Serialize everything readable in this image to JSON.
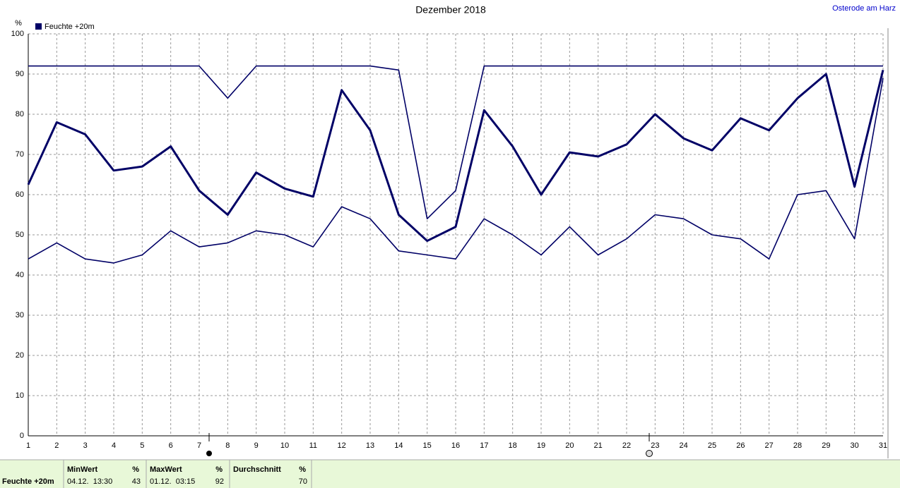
{
  "chart_data": {
    "type": "line",
    "title": "Dezember 2018",
    "y_label": "%",
    "x": [
      1,
      2,
      3,
      4,
      5,
      6,
      7,
      8,
      9,
      10,
      11,
      12,
      13,
      14,
      15,
      16,
      17,
      18,
      19,
      20,
      21,
      22,
      23,
      24,
      25,
      26,
      27,
      28,
      29,
      30,
      31
    ],
    "xlim": [
      1,
      31
    ],
    "xticks": [
      1,
      2,
      3,
      4,
      5,
      6,
      7,
      8,
      9,
      10,
      11,
      12,
      13,
      14,
      15,
      16,
      17,
      18,
      19,
      20,
      21,
      22,
      23,
      24,
      25,
      26,
      27,
      28,
      29,
      30,
      31
    ],
    "ylim": [
      0,
      100
    ],
    "yticks": [
      0,
      10,
      20,
      30,
      40,
      50,
      60,
      70,
      80,
      90,
      100
    ],
    "grid": true,
    "series": [
      {
        "name": "Feuchte +20m",
        "color": "#000066",
        "values": [
          62.5,
          78,
          75,
          66,
          67,
          72,
          61,
          55,
          65.5,
          61.5,
          59.5,
          86,
          76,
          55,
          48.5,
          52,
          81,
          72,
          60,
          70.5,
          69.5,
          72.5,
          80,
          74,
          71,
          79,
          76,
          84,
          90,
          62,
          91
        ]
      },
      {
        "color": "#000066",
        "values": [
          92,
          92,
          92,
          92,
          92,
          92,
          92,
          84,
          92,
          92,
          92,
          92,
          92,
          91,
          54,
          61,
          92,
          92,
          92,
          92,
          92,
          92,
          92,
          92,
          92,
          92,
          92,
          92,
          92,
          92,
          92
        ]
      },
      {
        "color": "#000066",
        "values": [
          44,
          48,
          44,
          43,
          45,
          51,
          47,
          48,
          51,
          50,
          47,
          57,
          54,
          46,
          45,
          44,
          54,
          50,
          45,
          52,
          45,
          49,
          55,
          54,
          50,
          49,
          44,
          60,
          61,
          49,
          89
        ]
      }
    ]
  },
  "header": {
    "location": "Osterode am Harz"
  },
  "footer": {
    "row_label": "Feuchte +20m",
    "columns": [
      {
        "header": "MinWert",
        "unit": "%",
        "time": "04.12.  13:30",
        "value": 43
      },
      {
        "header": "MaxWert",
        "unit": "%",
        "time": "01.12.  03:15",
        "value": 92
      },
      {
        "header": "Durchschnitt",
        "unit": "%",
        "value": 70
      }
    ]
  }
}
